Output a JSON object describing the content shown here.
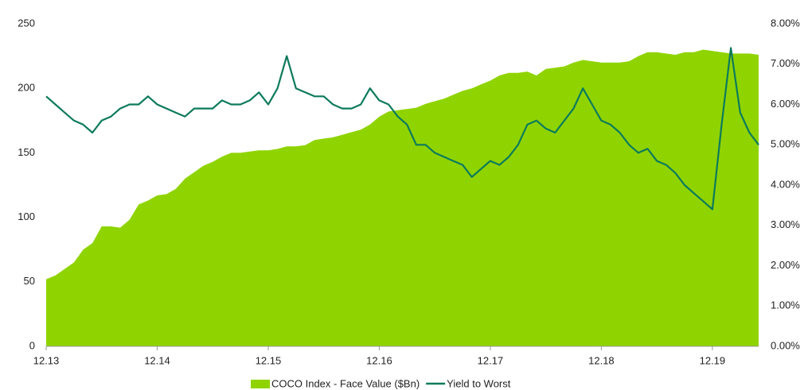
{
  "chart_data": {
    "type": "area-line",
    "categories": [
      "12.13",
      null,
      null,
      null,
      null,
      null,
      null,
      null,
      null,
      null,
      null,
      null,
      "12.14",
      null,
      null,
      null,
      null,
      null,
      null,
      null,
      null,
      null,
      null,
      null,
      "12.15",
      null,
      null,
      null,
      null,
      null,
      null,
      null,
      null,
      null,
      null,
      null,
      "12.16",
      null,
      null,
      null,
      null,
      null,
      null,
      null,
      null,
      null,
      null,
      null,
      "12.17",
      null,
      null,
      null,
      null,
      null,
      null,
      null,
      null,
      null,
      null,
      null,
      "12.18",
      null,
      null,
      null,
      null,
      null,
      null,
      null,
      null,
      null,
      null,
      null,
      "12.19",
      null,
      null,
      null,
      null,
      null
    ],
    "series": [
      {
        "name": "COCO Index - Face Value ($Bn)",
        "color": "#8fd400",
        "kind": "area",
        "axis": "y",
        "values": [
          52,
          55,
          60,
          65,
          75,
          80,
          93,
          93,
          92,
          98,
          110,
          113,
          117,
          118,
          122,
          130,
          135,
          140,
          143,
          147,
          150,
          150,
          151,
          152,
          152,
          153,
          155,
          155,
          156,
          160,
          161,
          162,
          164,
          166,
          168,
          172,
          178,
          182,
          183,
          184,
          185,
          188,
          190,
          192,
          195,
          198,
          200,
          203,
          206,
          210,
          212,
          212,
          213,
          210,
          215,
          216,
          217,
          220,
          222,
          221,
          220,
          220,
          220,
          221,
          225,
          228,
          228,
          227,
          226,
          228,
          228,
          230,
          229,
          228,
          227,
          227,
          227,
          226
        ]
      },
      {
        "name": "Yield to Worst",
        "color": "#0d7a5c",
        "kind": "line",
        "axis": "y2",
        "values": [
          6.2,
          6.0,
          5.8,
          5.6,
          5.5,
          5.3,
          5.6,
          5.7,
          5.9,
          6.0,
          6.0,
          6.2,
          6.0,
          5.9,
          5.8,
          5.7,
          5.9,
          5.9,
          5.9,
          6.1,
          6.0,
          6.0,
          6.1,
          6.3,
          6.0,
          6.4,
          7.2,
          6.4,
          6.3,
          6.2,
          6.2,
          6.0,
          5.9,
          5.9,
          6.0,
          6.4,
          6.1,
          6.0,
          5.7,
          5.5,
          5.0,
          5.0,
          4.8,
          4.7,
          4.6,
          4.5,
          4.2,
          4.4,
          4.6,
          4.5,
          4.7,
          5.0,
          5.5,
          5.6,
          5.4,
          5.3,
          5.6,
          5.9,
          6.4,
          6.0,
          5.6,
          5.5,
          5.3,
          5.0,
          4.8,
          4.9,
          4.6,
          4.5,
          4.3,
          4.0,
          3.8,
          3.6,
          3.4,
          5.5,
          7.4,
          5.8,
          5.3,
          5.0
        ]
      }
    ],
    "ylim": [
      0,
      250
    ],
    "yticks": [
      0,
      50,
      100,
      150,
      200,
      250
    ],
    "y2lim": [
      0,
      8
    ],
    "y2ticks": [
      {
        "value": 0,
        "label": "0.00%"
      },
      {
        "value": 1,
        "label": "1.00%"
      },
      {
        "value": 2,
        "label": "2.00%"
      },
      {
        "value": 3,
        "label": "3.00%"
      },
      {
        "value": 4,
        "label": "4.00%"
      },
      {
        "value": 5,
        "label": "5.00%"
      },
      {
        "value": 6,
        "label": "6.00%"
      },
      {
        "value": 7,
        "label": "7.00%"
      },
      {
        "value": 8,
        "label": "8.00%"
      }
    ],
    "grid": false,
    "legend": "bottom"
  }
}
